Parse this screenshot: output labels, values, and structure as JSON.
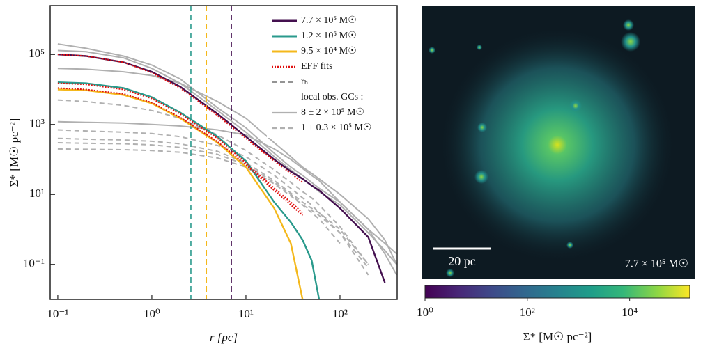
{
  "chart_data": {
    "type": "line",
    "xlabel": "r [pc]",
    "ylabel": "Σ* [M☉ pc⁻²]",
    "log_x": true,
    "log_y": true,
    "xlim": [
      0.083,
      405
    ],
    "ylim": [
      0.01,
      2500000
    ],
    "xticks": [
      {
        "value": 0.1,
        "label": "10⁻¹"
      },
      {
        "value": 1,
        "label": "10⁰"
      },
      {
        "value": 10,
        "label": "10¹"
      },
      {
        "value": 100,
        "label": "10²"
      }
    ],
    "yticks": [
      {
        "value": 0.1,
        "label": "10⁻¹"
      },
      {
        "value": 10,
        "label": "10¹"
      },
      {
        "value": 1000,
        "label": "10³"
      },
      {
        "value": 100000,
        "label": "10⁵"
      }
    ],
    "legend": "upper right",
    "x": [
      0.1,
      0.2,
      0.5,
      1,
      2,
      5,
      10,
      20,
      30,
      40,
      50,
      60,
      100,
      200,
      300,
      400
    ],
    "series": [
      {
        "name": "7.7 × 10⁵ M☉",
        "color": "#44104f",
        "r_h": 7.0,
        "values": [
          100000,
          90000,
          60000,
          32000,
          12000,
          2000,
          450,
          100,
          45,
          28,
          18,
          13,
          4,
          0.6,
          0.03,
          null
        ]
      },
      {
        "name": "1.2 × 10⁵ M☉",
        "color": "#2a9a8c",
        "r_h": 2.6,
        "values": [
          16000,
          15000,
          11000,
          6000,
          2200,
          450,
          90,
          6,
          1.6,
          0.5,
          0.13,
          0.01,
          null,
          null,
          null,
          null
        ]
      },
      {
        "name": "9.5 × 10⁴ M☉",
        "color": "#f4b81c",
        "r_h": 3.8,
        "values": [
          10000,
          9500,
          7000,
          4000,
          1500,
          300,
          60,
          4,
          0.4,
          0.01,
          null,
          null,
          null,
          null,
          null,
          null
        ]
      }
    ],
    "fits": {
      "name": "EFF fits",
      "color": "#e01010",
      "series": [
        [
          100000,
          90000,
          60000,
          30000,
          11000,
          1800,
          400,
          90,
          40,
          22,
          null,
          null,
          null,
          null,
          null,
          null
        ],
        [
          15000,
          14000,
          10000,
          5500,
          2000,
          400,
          80,
          15,
          6,
          3,
          null,
          null,
          null,
          null,
          null,
          null
        ],
        [
          11000,
          10000,
          7500,
          4200,
          1600,
          320,
          70,
          13,
          5,
          2.5,
          null,
          null,
          null,
          null,
          null,
          null
        ]
      ]
    },
    "rh_label": "rₕ",
    "obs_title": "local obs. GCs :",
    "groups": [
      {
        "name": "8 ± 2 × 10⁵ M☉",
        "color": "#b0b0b0",
        "dashed": false,
        "series": [
          [
            200000,
            150000,
            90000,
            50000,
            20000,
            3000,
            800,
            150,
            60,
            35,
            22,
            15,
            6,
            1,
            0.2,
            0.05
          ],
          [
            40000,
            38000,
            32000,
            25000,
            15000,
            4500,
            1500,
            300,
            120,
            60,
            40,
            28,
            10,
            2,
            0.5,
            0.1
          ],
          [
            130000,
            120000,
            80000,
            40000,
            15000,
            2500,
            600,
            120,
            50,
            28,
            18,
            12,
            5,
            0.8,
            0.25,
            0.1
          ],
          [
            1200,
            1150,
            1100,
            1000,
            900,
            700,
            500,
            200,
            100,
            55,
            35,
            25,
            6,
            1,
            0.4,
            0.2
          ]
        ]
      },
      {
        "name": "1 ± 0.3 × 10⁵ M☉",
        "color": "#b0b0b0",
        "dashed": true,
        "series": [
          [
            700,
            650,
            600,
            550,
            450,
            250,
            120,
            35,
            15,
            8,
            5,
            3,
            0.8,
            0.05,
            null,
            null
          ],
          [
            300,
            290,
            280,
            260,
            220,
            140,
            70,
            22,
            10,
            5,
            3,
            2,
            0.4,
            null,
            null,
            null
          ],
          [
            200,
            195,
            190,
            180,
            160,
            110,
            60,
            20,
            9,
            5,
            3.5,
            2.5,
            0.8,
            0.08,
            null,
            null
          ],
          [
            5000,
            4500,
            3500,
            2500,
            1500,
            500,
            180,
            50,
            22,
            12,
            8,
            5,
            1.2,
            0.1,
            null,
            null
          ],
          [
            400,
            380,
            360,
            330,
            280,
            170,
            80,
            25,
            11,
            6,
            4,
            3,
            1,
            0.1,
            null,
            null
          ]
        ]
      }
    ],
    "image": {
      "scale_bar": "20 pc",
      "mass_label": "7.7 × 10⁵ M☉"
    },
    "colorbar": {
      "label": "Σ* [M☉ pc⁻²]",
      "clim": [
        1,
        150000
      ],
      "ticks": [
        {
          "value": 1,
          "label": "10⁰"
        },
        {
          "value": 100,
          "label": "10²"
        },
        {
          "value": 10000,
          "label": "10⁴"
        }
      ]
    }
  }
}
